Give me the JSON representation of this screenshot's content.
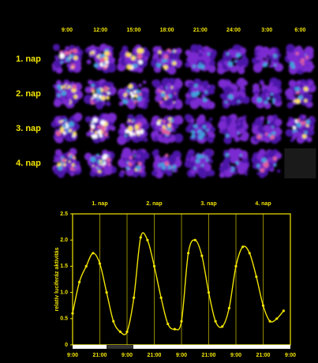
{
  "image_panel": {
    "times": [
      "9:00",
      "12:00",
      "15:00",
      "18:00",
      "21:00",
      "24:00",
      "3:00",
      "6:00"
    ],
    "rows": [
      "1. nap",
      "2. nap",
      "3. nap",
      "4. nap"
    ]
  },
  "chart_data": {
    "type": "line",
    "y_label": "relatív luciferáz aktivitás",
    "day_labels": [
      "1. nap",
      "2. nap",
      "3. nap",
      "4. nap"
    ],
    "x": [
      0,
      3,
      6,
      9,
      12,
      15,
      18,
      21,
      24,
      27,
      30,
      33,
      36,
      39,
      42,
      45,
      48,
      51,
      54,
      57,
      60,
      63,
      66,
      69,
      72,
      75,
      78,
      81,
      84,
      87,
      90,
      93
    ],
    "series": [
      {
        "color": "#f2e500",
        "values": [
          0.6,
          1.2,
          1.5,
          1.75,
          1.55,
          1.0,
          0.45,
          0.25,
          0.25,
          0.9,
          2.05,
          2.0,
          1.5,
          0.9,
          0.4,
          0.3,
          0.45,
          1.75,
          2.0,
          1.7,
          1.0,
          0.45,
          0.35,
          0.7,
          1.5,
          1.87,
          1.75,
          1.3,
          0.75,
          0.45,
          0.5,
          0.65
        ]
      }
    ],
    "xlim": [
      0,
      96
    ],
    "xticks": [
      {
        "value": 0,
        "label": "9:00"
      },
      {
        "value": 12,
        "label": "21:00"
      },
      {
        "value": 24,
        "label": "9:00"
      },
      {
        "value": 36,
        "label": "21:00"
      },
      {
        "value": 48,
        "label": "9:00"
      },
      {
        "value": 60,
        "label": "21:00"
      },
      {
        "value": 72,
        "label": "9:00"
      },
      {
        "value": 84,
        "label": "21:00"
      },
      {
        "value": 96,
        "label": "9:00"
      }
    ],
    "ylim": [
      0,
      2.5
    ],
    "yticks": [
      0,
      0.5,
      {
        "value": 1,
        "label": "1.0"
      },
      1.5,
      {
        "value": 2,
        "label": "2.0"
      },
      2.5
    ],
    "grid": true
  }
}
